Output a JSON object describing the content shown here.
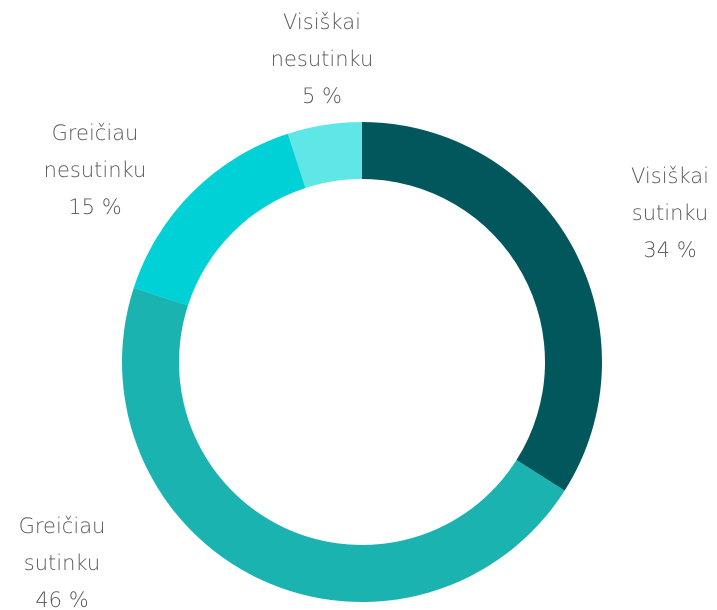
{
  "chart_data": {
    "type": "donut",
    "categories": [
      "Visiškai sutinku",
      "Greičiau sutinku",
      "Greičiau nesutinku",
      "Visiškai nesutinku"
    ],
    "values": [
      34,
      46,
      15,
      5
    ],
    "value_labels": [
      "34 %",
      "46 %",
      "15 %",
      "5 %"
    ],
    "colors": [
      "#02575c",
      "#1bb3b0",
      "#00d1d6",
      "#5fe6e6"
    ]
  }
}
